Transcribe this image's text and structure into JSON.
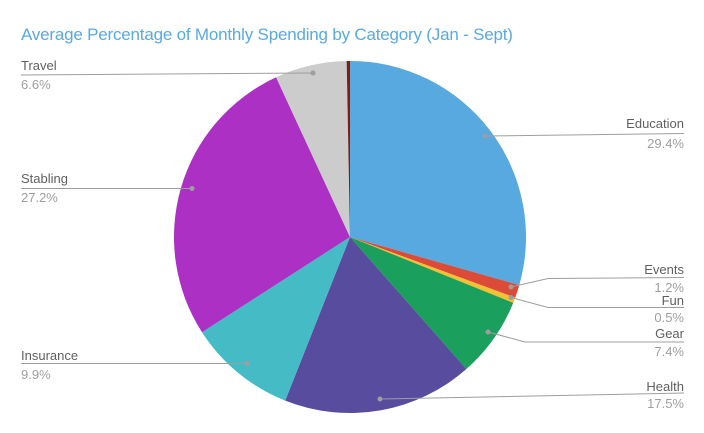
{
  "title": "Average Percentage of Monthly Spending by Category (Jan - Sept)",
  "title_color": "#59A9E2",
  "chart_data": {
    "type": "pie",
    "title": "Average Percentage of Monthly Spending by Category (Jan - Sept)",
    "unit": "percent",
    "direction": "clockwise",
    "start_angle_deg": 0,
    "legend_position": "callout-labels",
    "slices": [
      {
        "label": "Education",
        "value": 29.4,
        "pct_label": "29.4%",
        "color": "#57A9E0"
      },
      {
        "label": "Events",
        "value": 1.2,
        "pct_label": "1.2%",
        "color": "#DC4B38"
      },
      {
        "label": "Fun",
        "value": 0.5,
        "pct_label": "0.5%",
        "color": "#F1C232"
      },
      {
        "label": "Gear",
        "value": 7.4,
        "pct_label": "7.4%",
        "color": "#1AA05C"
      },
      {
        "label": "Health",
        "value": 17.5,
        "pct_label": "17.5%",
        "color": "#584C9E"
      },
      {
        "label": "Insurance",
        "value": 9.9,
        "pct_label": "9.9%",
        "color": "#45BCC5"
      },
      {
        "label": "Stabling",
        "value": 27.2,
        "pct_label": "27.2%",
        "color": "#AC30C4"
      },
      {
        "label": "Travel",
        "value": 6.6,
        "pct_label": "6.6%",
        "color": "#CCCCCC"
      },
      {
        "label": "",
        "value": 0.3,
        "pct_label": "",
        "color": "#8B1A0E",
        "note": "thin unlabeled sliver at 12 o'clock"
      }
    ]
  }
}
